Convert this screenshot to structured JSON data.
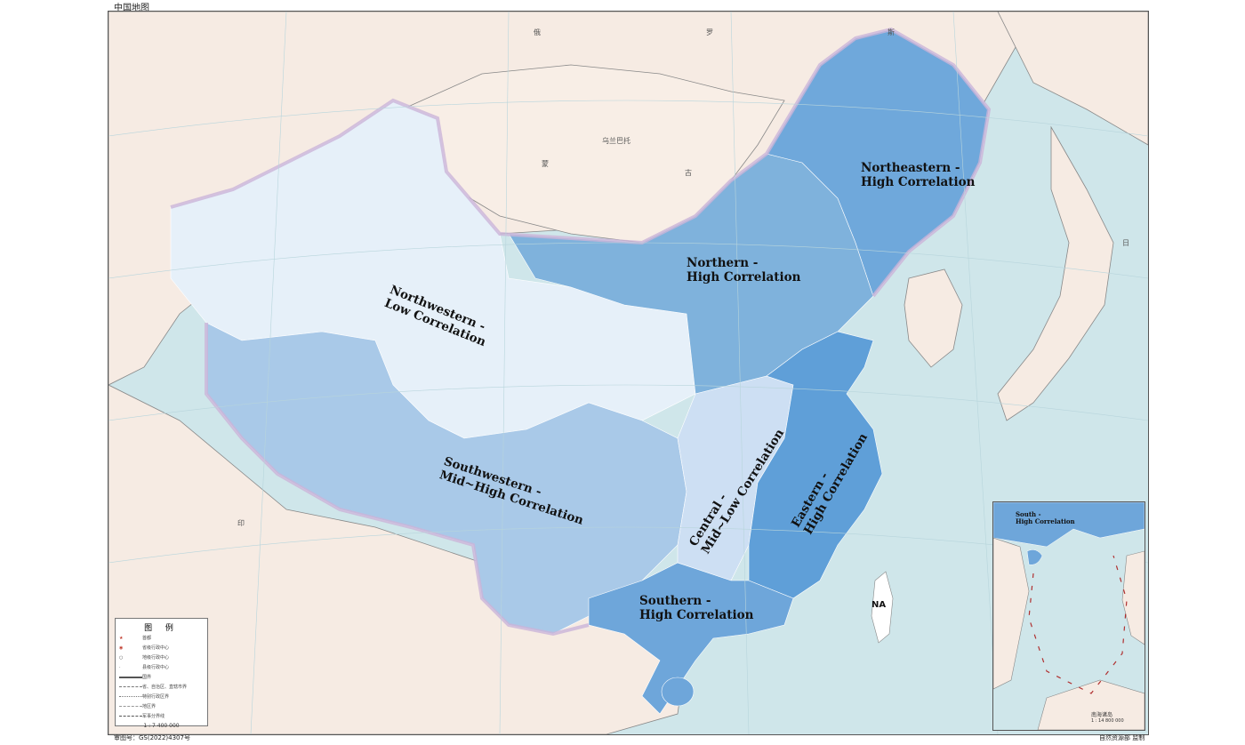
{
  "header": {
    "map_title": "中国地图"
  },
  "footer": {
    "approval_number": "审图号：GS(2022)4307号",
    "publisher": "自然资源部 监制"
  },
  "colors": {
    "sea": "#cfe6ea",
    "land_foreign": "#f6ebe3",
    "northwestern": "#e6f0f9",
    "southwestern": "#a9c9e8",
    "central": "#cddff3",
    "northern": "#7fb2dc",
    "northeastern": "#6fa8db",
    "eastern": "#5f9fd8",
    "southern": "#6ea6da",
    "border_halo": "#d9c6e2"
  },
  "regions": {
    "northwestern": {
      "line1": "Northwestern -",
      "line2": "Low Correlation",
      "correlation": "Low"
    },
    "northern": {
      "line1": "Northern -",
      "line2": "High Correlation",
      "correlation": "High"
    },
    "northeastern": {
      "line1": "Northeastern -",
      "line2": "High Correlation",
      "correlation": "High"
    },
    "southwestern": {
      "line1": "Southwestern -",
      "line2": "Mid~High Correlation",
      "correlation": "Mid~High"
    },
    "central": {
      "line1": "Central -",
      "line2": "Mid~Low Correlation",
      "correlation": "Mid~Low"
    },
    "eastern": {
      "line1": "Eastern -",
      "line2": "High Correlation",
      "correlation": "High"
    },
    "southern": {
      "line1": "Southern -",
      "line2": "High Correlation",
      "correlation": "High"
    },
    "taiwan": {
      "label": "NA"
    }
  },
  "neighbors": {
    "russia_1": "俄",
    "russia_2": "罗",
    "russia_3": "斯",
    "mongolia_1": "蒙",
    "mongolia_2": "古",
    "ulaanbaatar": "乌兰巴托",
    "india": "印",
    "japan": "日"
  },
  "legend": {
    "title": "图  例",
    "items": [
      "首都",
      "省级行政中心",
      "地级行政中心",
      "县级行政中心",
      "国界",
      "省、自治区、直辖市界",
      "特别行政区界",
      "地区界",
      "军事分界线"
    ],
    "scale": "1 : 7 400 000"
  },
  "inset": {
    "label_line1": "South -",
    "label_line2": "High Correlation",
    "title": "南海诸岛",
    "scale": "1 : 14 800 000"
  }
}
